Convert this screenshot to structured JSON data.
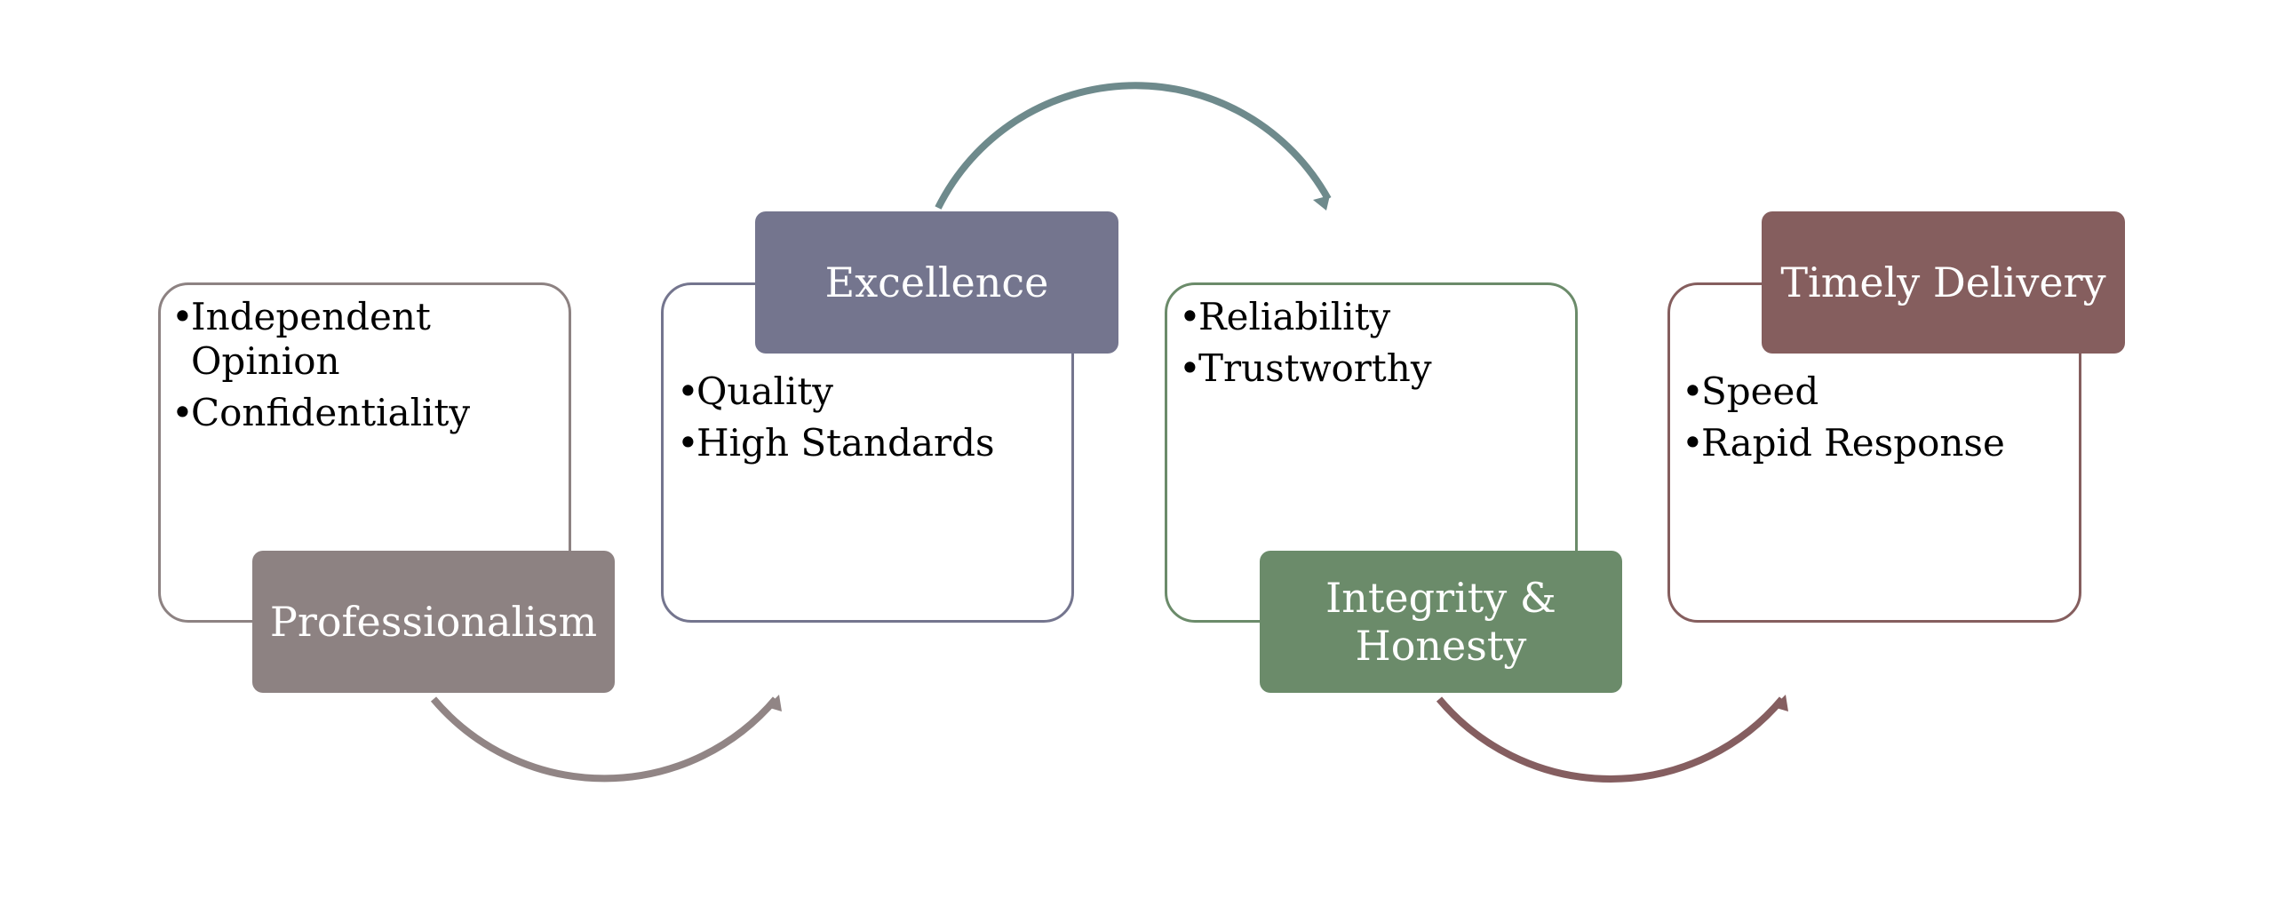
{
  "diagram": {
    "items": [
      {
        "title": "Professionalism",
        "color": "#8d8282",
        "bullets": [
          "Independent Opinion",
          "Confidentiality"
        ]
      },
      {
        "title": "Excellence",
        "color": "#74758e",
        "bullets": [
          "Quality",
          "High Standards"
        ]
      },
      {
        "title": "Integrity & Honesty",
        "color": "#6b8b6a",
        "bullets": [
          "Reliability",
          "Trustworthy"
        ]
      },
      {
        "title": "Timely Delivery",
        "color": "#855e5e",
        "bullets": [
          "Speed",
          "Rapid Response"
        ]
      }
    ],
    "connectors": [
      {
        "color": "#918585"
      },
      {
        "color": "#6e8a8c"
      },
      {
        "color": "#855e60"
      }
    ]
  }
}
